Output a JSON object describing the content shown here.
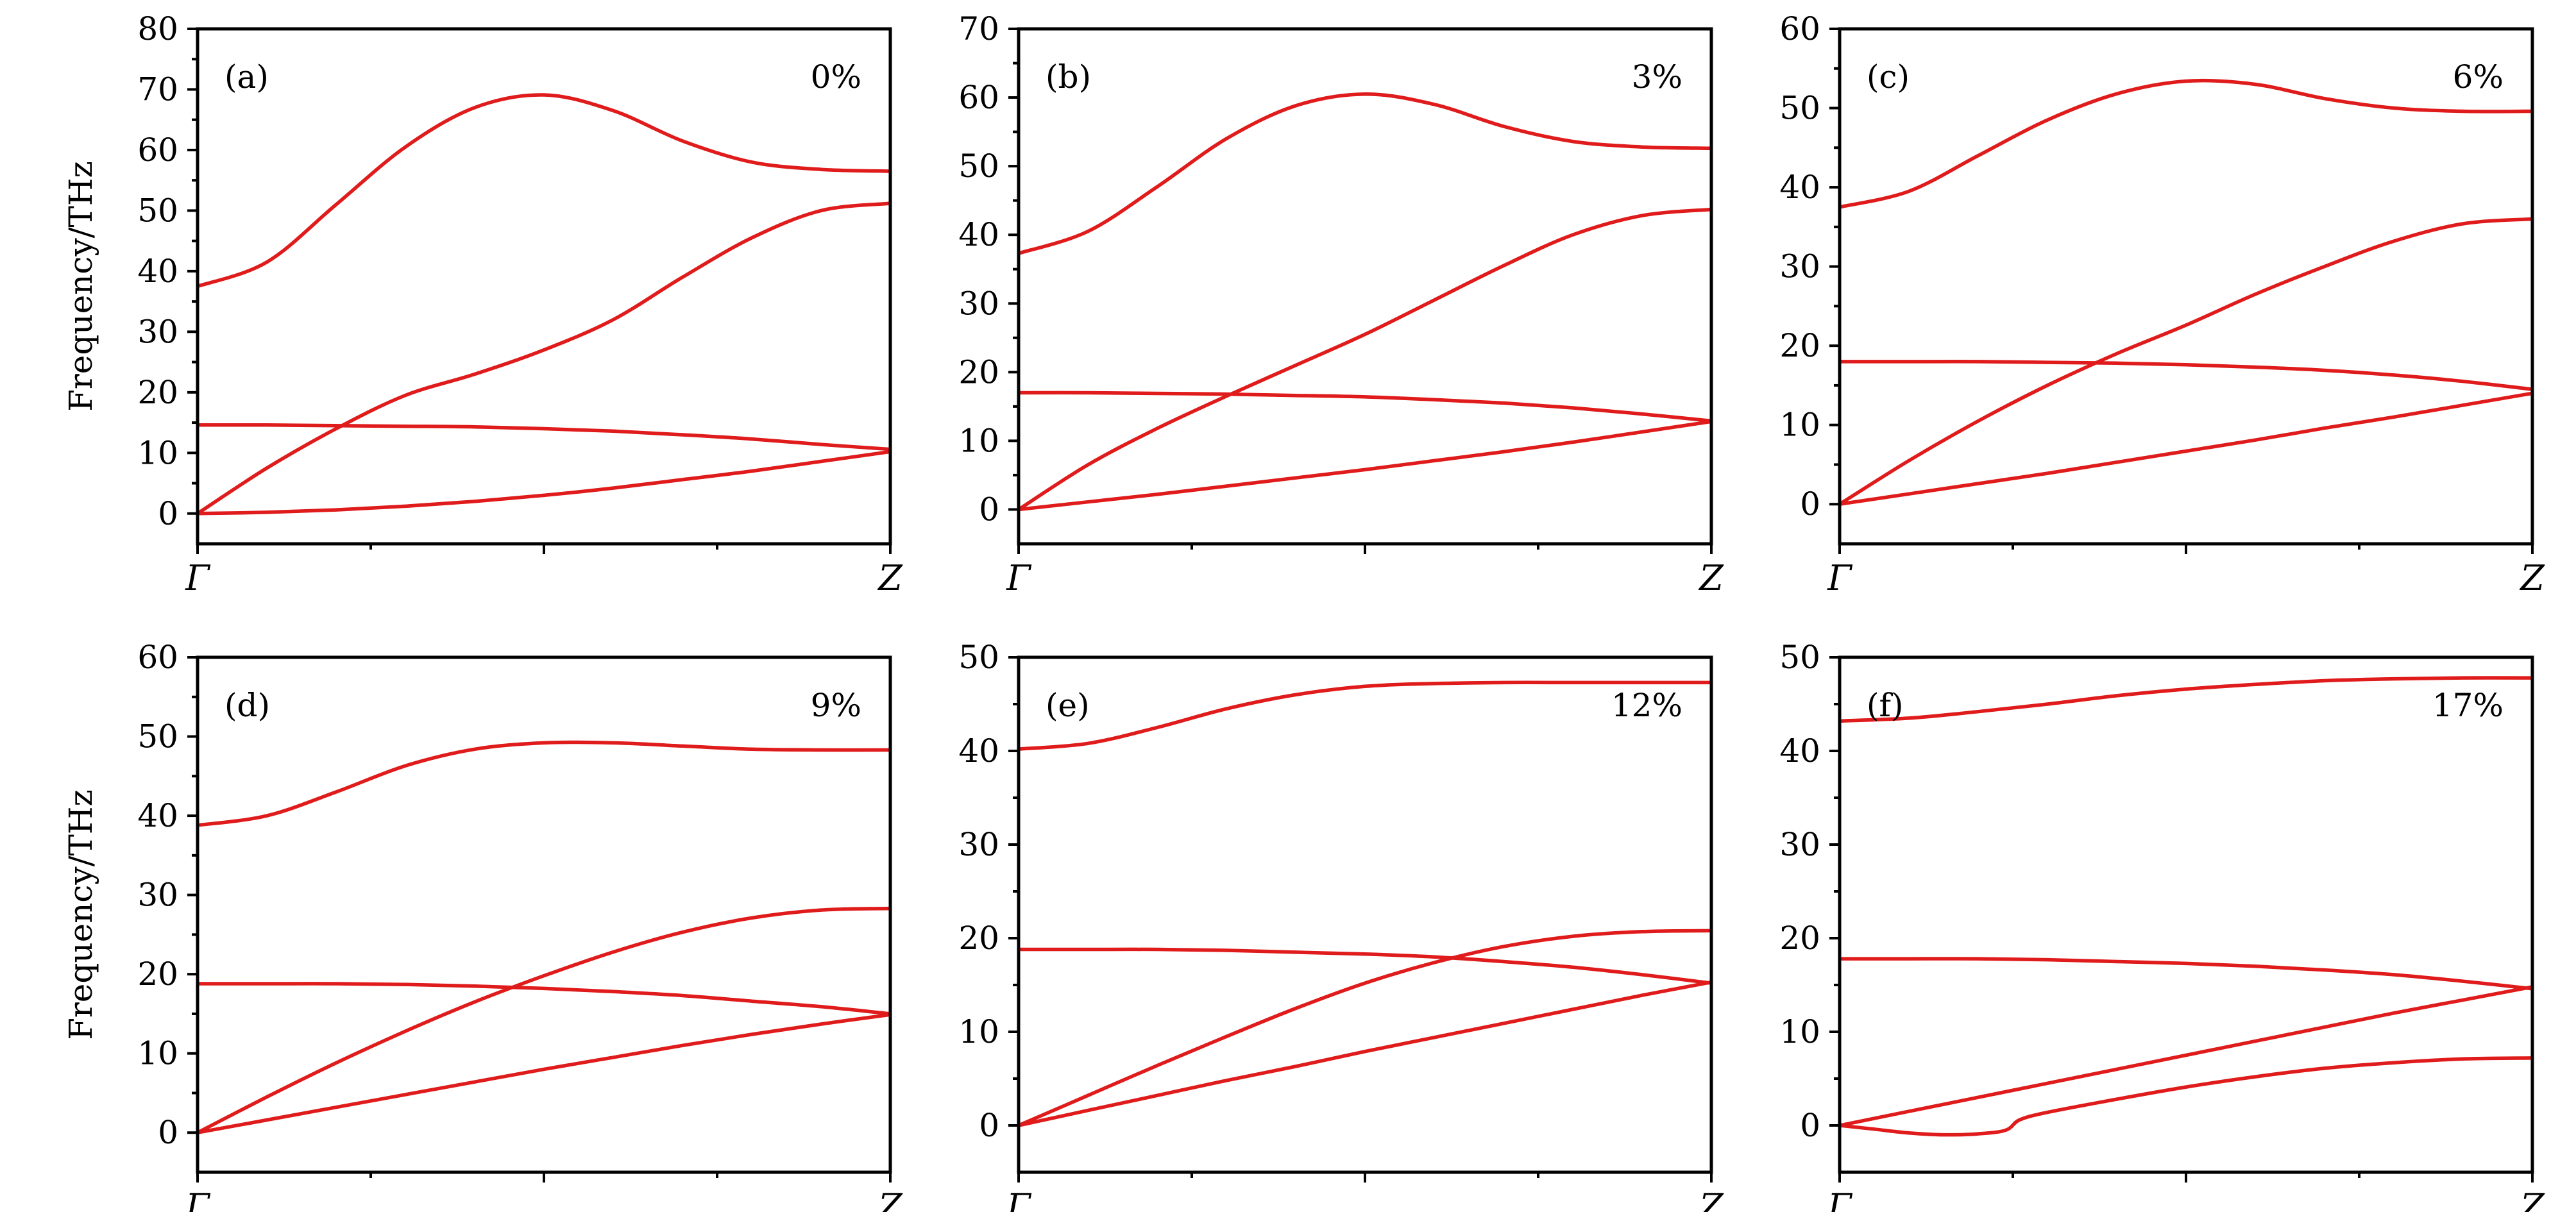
{
  "chart_data": [
    {
      "type": "line",
      "panel_label": "(a)",
      "strain": "0%",
      "ylabel": "Frequency/THz",
      "ylim": [
        -5,
        80
      ],
      "yticks": [
        0,
        10,
        20,
        30,
        40,
        50,
        60,
        70,
        80
      ],
      "x_ticks": [
        "Γ",
        "Z"
      ],
      "color": "#e01b1b",
      "series": [
        {
          "x": [
            0,
            0.1,
            0.2,
            0.3,
            0.4,
            0.5,
            0.6,
            0.7,
            0.8,
            0.9,
            1.0
          ],
          "values": [
            37.5,
            41.5,
            51,
            60.5,
            67,
            69.1,
            66.5,
            61.5,
            58,
            56.8,
            56.5
          ]
        },
        {
          "x": [
            0,
            0.1,
            0.2,
            0.3,
            0.4,
            0.5,
            0.6,
            0.7,
            0.8,
            0.9,
            1.0
          ],
          "values": [
            0,
            7.5,
            14,
            19.5,
            23,
            27,
            32,
            39,
            45.5,
            50,
            51.2
          ]
        },
        {
          "x": [
            0,
            0.1,
            0.2,
            0.3,
            0.4,
            0.5,
            0.6,
            0.7,
            0.8,
            0.9,
            1.0
          ],
          "values": [
            14.6,
            14.6,
            14.5,
            14.4,
            14.3,
            14.0,
            13.6,
            13.0,
            12.3,
            11.4,
            10.6
          ]
        },
        {
          "x": [
            0,
            0.1,
            0.2,
            0.3,
            0.4,
            0.5,
            0.6,
            0.7,
            0.8,
            0.9,
            1.0
          ],
          "values": [
            0,
            0.2,
            0.6,
            1.2,
            2.0,
            3.0,
            4.2,
            5.6,
            7.0,
            8.6,
            10.2
          ]
        }
      ]
    },
    {
      "type": "line",
      "panel_label": "(b)",
      "strain": "3%",
      "ylabel": "",
      "ylim": [
        -5,
        70
      ],
      "yticks": [
        0,
        10,
        20,
        30,
        40,
        50,
        60,
        70
      ],
      "x_ticks": [
        "Γ",
        "Z"
      ],
      "color": "#e01b1b",
      "series": [
        {
          "x": [
            0,
            0.1,
            0.2,
            0.3,
            0.4,
            0.5,
            0.6,
            0.7,
            0.8,
            0.9,
            1.0
          ],
          "values": [
            37.3,
            40.5,
            47.0,
            54.0,
            58.8,
            60.5,
            59.0,
            55.8,
            53.6,
            52.8,
            52.6
          ]
        },
        {
          "x": [
            0,
            0.1,
            0.2,
            0.3,
            0.4,
            0.5,
            0.6,
            0.7,
            0.8,
            0.9,
            1.0
          ],
          "values": [
            0,
            6.5,
            11.8,
            16.5,
            21.0,
            25.5,
            30.5,
            35.5,
            40.0,
            42.8,
            43.7
          ]
        },
        {
          "x": [
            0,
            0.1,
            0.2,
            0.3,
            0.4,
            0.5,
            0.6,
            0.7,
            0.8,
            0.9,
            1.0
          ],
          "values": [
            17.0,
            17.0,
            16.9,
            16.8,
            16.6,
            16.4,
            16.0,
            15.5,
            14.8,
            13.9,
            12.9
          ]
        },
        {
          "x": [
            0,
            0.1,
            0.2,
            0.3,
            0.4,
            0.5,
            0.6,
            0.7,
            0.8,
            0.9,
            1.0
          ],
          "values": [
            0,
            1.1,
            2.2,
            3.4,
            4.6,
            5.8,
            7.1,
            8.4,
            9.8,
            11.3,
            12.8
          ]
        }
      ]
    },
    {
      "type": "line",
      "panel_label": "(c)",
      "strain": "6%",
      "ylabel": "",
      "ylim": [
        -5,
        60
      ],
      "yticks": [
        0,
        10,
        20,
        30,
        40,
        50,
        60
      ],
      "x_ticks": [
        "Γ",
        "Z"
      ],
      "color": "#e01b1b",
      "series": [
        {
          "x": [
            0,
            0.1,
            0.2,
            0.3,
            0.4,
            0.5,
            0.6,
            0.7,
            0.8,
            0.9,
            1.0
          ],
          "values": [
            37.5,
            39.5,
            44.0,
            48.5,
            51.8,
            53.4,
            53.0,
            51.2,
            50.0,
            49.6,
            49.6
          ]
        },
        {
          "x": [
            0,
            0.1,
            0.2,
            0.3,
            0.4,
            0.5,
            0.6,
            0.7,
            0.8,
            0.9,
            1.0
          ],
          "values": [
            0,
            5.5,
            10.5,
            15.0,
            19.0,
            22.6,
            26.5,
            30.0,
            33.2,
            35.4,
            36.0
          ]
        },
        {
          "x": [
            0,
            0.1,
            0.2,
            0.3,
            0.4,
            0.5,
            0.6,
            0.7,
            0.8,
            0.9,
            1.0
          ],
          "values": [
            18.0,
            18.0,
            18.0,
            17.9,
            17.8,
            17.6,
            17.3,
            16.9,
            16.3,
            15.5,
            14.5
          ]
        },
        {
          "x": [
            0,
            0.1,
            0.2,
            0.3,
            0.4,
            0.5,
            0.6,
            0.7,
            0.8,
            0.9,
            1.0
          ],
          "values": [
            0,
            1.3,
            2.6,
            3.9,
            5.3,
            6.7,
            8.1,
            9.6,
            11.0,
            12.5,
            14.0
          ]
        }
      ]
    },
    {
      "type": "line",
      "panel_label": "(d)",
      "strain": "9%",
      "ylabel": "Frequency/THz",
      "ylim": [
        -5,
        60
      ],
      "yticks": [
        0,
        10,
        20,
        30,
        40,
        50,
        60
      ],
      "x_ticks": [
        "Γ",
        "Z"
      ],
      "color": "#e01b1b",
      "series": [
        {
          "x": [
            0,
            0.1,
            0.2,
            0.3,
            0.4,
            0.5,
            0.6,
            0.7,
            0.8,
            0.9,
            1.0
          ],
          "values": [
            38.8,
            40.0,
            43.0,
            46.3,
            48.4,
            49.2,
            49.2,
            48.8,
            48.4,
            48.3,
            48.3
          ]
        },
        {
          "x": [
            0,
            0.1,
            0.2,
            0.3,
            0.4,
            0.5,
            0.6,
            0.7,
            0.8,
            0.9,
            1.0
          ],
          "values": [
            0,
            4.5,
            8.8,
            12.8,
            16.5,
            19.8,
            22.8,
            25.3,
            27.1,
            28.1,
            28.3
          ]
        },
        {
          "x": [
            0,
            0.1,
            0.2,
            0.3,
            0.4,
            0.5,
            0.6,
            0.7,
            0.8,
            0.9,
            1.0
          ],
          "values": [
            18.8,
            18.8,
            18.8,
            18.7,
            18.5,
            18.2,
            17.8,
            17.3,
            16.6,
            15.9,
            15.0
          ]
        },
        {
          "x": [
            0,
            0.1,
            0.2,
            0.3,
            0.4,
            0.5,
            0.6,
            0.7,
            0.8,
            0.9,
            1.0
          ],
          "values": [
            0,
            1.6,
            3.2,
            4.8,
            6.4,
            8.0,
            9.5,
            11.0,
            12.4,
            13.7,
            14.9
          ]
        }
      ]
    },
    {
      "type": "line",
      "panel_label": "(e)",
      "strain": "12%",
      "ylabel": "",
      "ylim": [
        -5,
        50
      ],
      "yticks": [
        0,
        10,
        20,
        30,
        40,
        50
      ],
      "x_ticks": [
        "Γ",
        "Z"
      ],
      "color": "#e01b1b",
      "series": [
        {
          "x": [
            0,
            0.1,
            0.2,
            0.3,
            0.4,
            0.5,
            0.6,
            0.7,
            0.8,
            0.9,
            1.0
          ],
          "values": [
            40.2,
            40.8,
            42.5,
            44.5,
            46.0,
            46.9,
            47.2,
            47.3,
            47.3,
            47.3,
            47.3
          ]
        },
        {
          "x": [
            0,
            0.1,
            0.2,
            0.3,
            0.4,
            0.5,
            0.6,
            0.7,
            0.8,
            0.9,
            1.0
          ],
          "values": [
            0,
            3.2,
            6.4,
            9.5,
            12.5,
            15.2,
            17.4,
            19.1,
            20.2,
            20.7,
            20.8
          ]
        },
        {
          "x": [
            0,
            0.1,
            0.2,
            0.3,
            0.4,
            0.5,
            0.6,
            0.7,
            0.8,
            0.9,
            1.0
          ],
          "values": [
            18.8,
            18.8,
            18.8,
            18.7,
            18.5,
            18.3,
            18.0,
            17.5,
            16.9,
            16.1,
            15.2
          ]
        },
        {
          "x": [
            0,
            0.1,
            0.2,
            0.3,
            0.4,
            0.5,
            0.6,
            0.7,
            0.8,
            0.9,
            1.0
          ],
          "values": [
            0,
            1.6,
            3.2,
            4.8,
            6.3,
            7.9,
            9.4,
            10.9,
            12.4,
            13.9,
            15.3
          ]
        }
      ]
    },
    {
      "type": "line",
      "panel_label": "(f)",
      "strain": "17%",
      "ylabel": "",
      "ylim": [
        -5,
        50
      ],
      "yticks": [
        0,
        10,
        20,
        30,
        40,
        50
      ],
      "x_ticks": [
        "Γ",
        "Z"
      ],
      "color": "#e01b1b",
      "series": [
        {
          "x": [
            0,
            0.1,
            0.2,
            0.3,
            0.4,
            0.5,
            0.6,
            0.7,
            0.8,
            0.9,
            1.0
          ],
          "values": [
            43.2,
            43.5,
            44.2,
            45.0,
            45.9,
            46.6,
            47.1,
            47.5,
            47.7,
            47.8,
            47.8
          ]
        },
        {
          "x": [
            0,
            0.1,
            0.2,
            0.3,
            0.4,
            0.5,
            0.6,
            0.7,
            0.8,
            0.9,
            1.0
          ],
          "values": [
            17.8,
            17.8,
            17.8,
            17.7,
            17.5,
            17.3,
            17.0,
            16.6,
            16.1,
            15.4,
            14.6
          ]
        },
        {
          "x": [
            0,
            0.1,
            0.2,
            0.3,
            0.4,
            0.5,
            0.6,
            0.7,
            0.8,
            0.9,
            1.0
          ],
          "values": [
            0,
            1.5,
            3.0,
            4.5,
            6.0,
            7.5,
            9.0,
            10.5,
            12.0,
            13.4,
            14.8
          ]
        },
        {
          "x": [
            0,
            0.05,
            0.1,
            0.15,
            0.2,
            0.24,
            0.26,
            0.3,
            0.4,
            0.5,
            0.6,
            0.7,
            0.8,
            0.9,
            1.0
          ],
          "values": [
            0,
            -0.4,
            -0.8,
            -1.0,
            -0.9,
            -0.5,
            0.6,
            1.4,
            2.8,
            4.1,
            5.2,
            6.1,
            6.7,
            7.1,
            7.2
          ]
        }
      ]
    }
  ]
}
